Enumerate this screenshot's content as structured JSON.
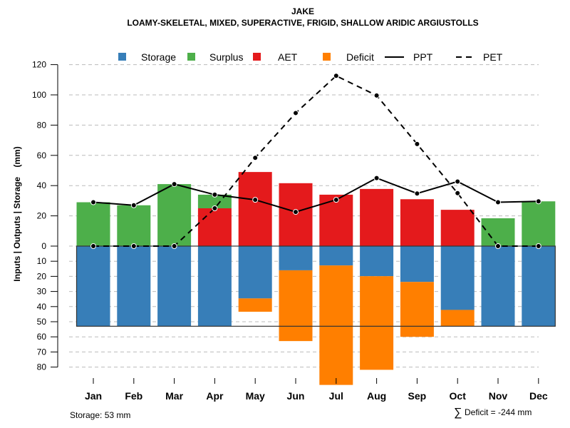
{
  "chart_data": {
    "type": "bar",
    "title": "JAKE",
    "subtitle": "LOAMY-SKELETAL, MIXED, SUPERACTIVE, FRIGID, SHALLOW ARIDIC ARGIUSTOLLS",
    "xlabel": "",
    "ylabel": "Inputs | Outputs | Storage    (mm)",
    "categories": [
      "Jan",
      "Feb",
      "Mar",
      "Apr",
      "May",
      "Jun",
      "Jul",
      "Aug",
      "Sep",
      "Oct",
      "Nov",
      "Dec"
    ],
    "ylim_positive": [
      0,
      120
    ],
    "ylim_negative": [
      0,
      80
    ],
    "yticks_positive": [
      "0",
      "20",
      "40",
      "60",
      "80",
      "100",
      "120"
    ],
    "yticks_negative": [
      "10",
      "20",
      "30",
      "40",
      "50",
      "60",
      "70",
      "80"
    ],
    "grid": true,
    "legend_position": "top",
    "legend": [
      {
        "name": "Storage",
        "kind": "box",
        "color": "#377EB8"
      },
      {
        "name": "Surplus",
        "kind": "box",
        "color": "#4DAF4A"
      },
      {
        "name": "AET",
        "kind": "box",
        "color": "#E41A1C"
      },
      {
        "name": "Deficit",
        "kind": "box",
        "color": "#FF7F00"
      },
      {
        "name": "PPT",
        "kind": "solid-line",
        "color": "#000000"
      },
      {
        "name": "PET",
        "kind": "dashed-line",
        "color": "#000000"
      }
    ],
    "series": [
      {
        "name": "AET",
        "stack": "up",
        "color": "#E41A1C",
        "values": [
          0,
          0,
          0,
          25,
          49,
          41.6,
          34,
          37.8,
          31,
          24,
          0,
          0
        ]
      },
      {
        "name": "Surplus",
        "stack": "up",
        "color": "#4DAF4A",
        "values": [
          29,
          27,
          41,
          9,
          0,
          0,
          0,
          0,
          0,
          0,
          18.4,
          29.6
        ]
      },
      {
        "name": "Storage",
        "stack": "down",
        "color": "#377EB8",
        "values": [
          53,
          53,
          53,
          53,
          34.6,
          16,
          12.8,
          19.9,
          23.7,
          42.2,
          53,
          53
        ]
      },
      {
        "name": "Deficit",
        "stack": "down",
        "color": "#FF7F00",
        "values": [
          0,
          0,
          0,
          0,
          8.8,
          46.8,
          79,
          61.9,
          36.3,
          10.8,
          0,
          0
        ]
      },
      {
        "name": "PPT",
        "type": "line",
        "style": "solid",
        "color": "#000000",
        "values": [
          29,
          27,
          41,
          34,
          30.6,
          22.6,
          30.6,
          45,
          34.8,
          42.7,
          29,
          29.6
        ]
      },
      {
        "name": "PET",
        "type": "line",
        "style": "dashed",
        "color": "#000000",
        "values": [
          0,
          0,
          0,
          25,
          58.4,
          88,
          112.6,
          99.6,
          67.5,
          35,
          0,
          0
        ]
      }
    ],
    "storage_capacity": 53,
    "annotations": {
      "storage": "Storage: 53 mm",
      "deficit_sum": "Deficit = -244 mm",
      "deficit_symbol": "∑"
    }
  }
}
